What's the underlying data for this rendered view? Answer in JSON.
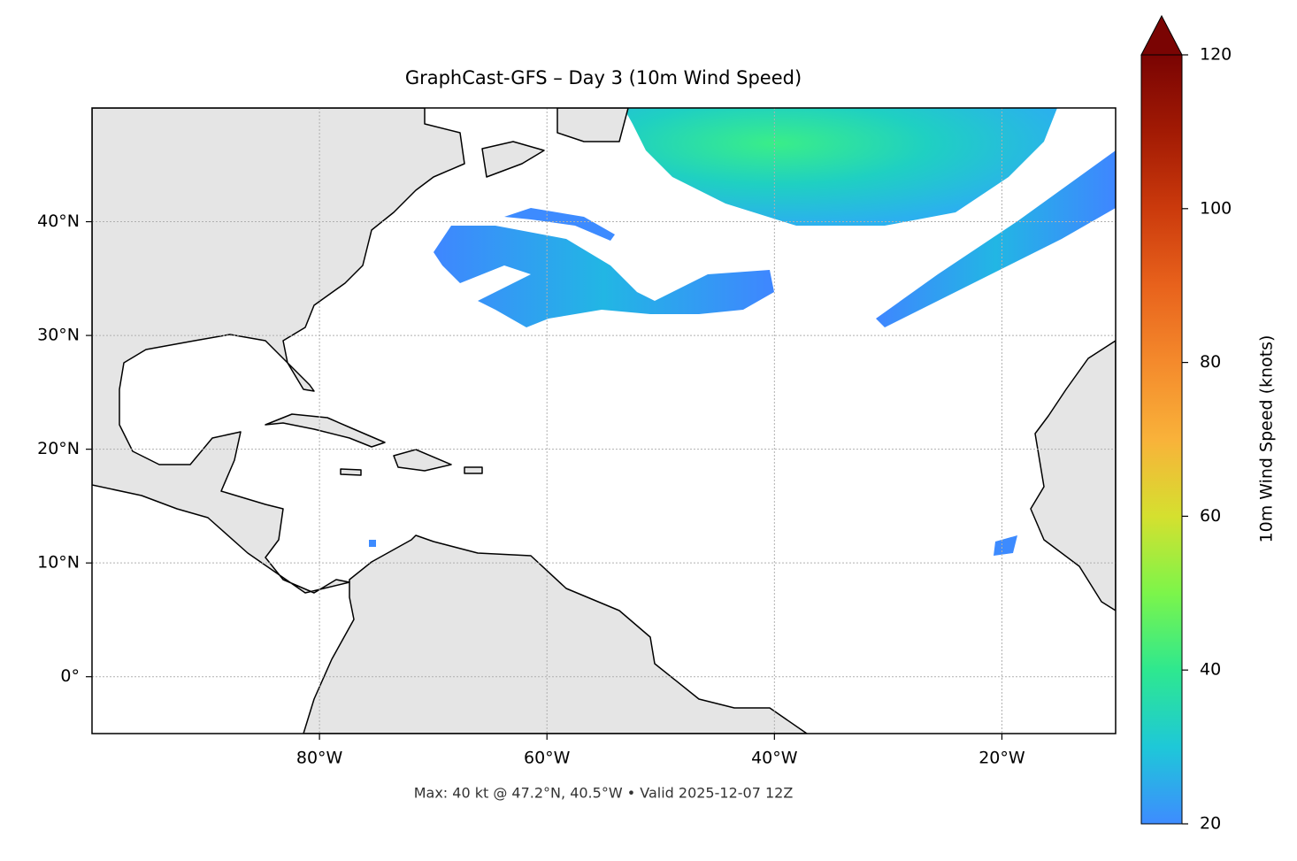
{
  "chart_data": {
    "type": "map",
    "title": "GraphCast-GFS – Day 3 (10m Wind Speed)",
    "footnote": "Max: 40 kt @ 47.2°N, 40.5°W • Valid 2025-12-07 12Z",
    "xlim": [
      -100,
      -10
    ],
    "ylim": [
      -5,
      50
    ],
    "xticks": [
      {
        "value": -80,
        "label": "80°W"
      },
      {
        "value": -60,
        "label": "60°W"
      },
      {
        "value": -40,
        "label": "40°W"
      },
      {
        "value": -20,
        "label": "20°W"
      }
    ],
    "yticks": [
      {
        "value": 0,
        "label": "0°"
      },
      {
        "value": 10,
        "label": "10°N"
      },
      {
        "value": 20,
        "label": "20°N"
      },
      {
        "value": 30,
        "label": "30°N"
      },
      {
        "value": 40,
        "label": "40°N"
      }
    ],
    "grid": true,
    "colorbar": {
      "label": "10m Wind Speed (knots)",
      "lim": [
        20,
        120
      ],
      "ticks": [
        20,
        40,
        60,
        80,
        100,
        120
      ],
      "extend": "max",
      "colors": [
        "#3e8cff",
        "#1ec8d8",
        "#2ee88f",
        "#7cf54a",
        "#d5e02f",
        "#f9b23a",
        "#f48a2c",
        "#e8621c",
        "#cb3a0c",
        "#a21a04",
        "#7a0403"
      ]
    }
  }
}
